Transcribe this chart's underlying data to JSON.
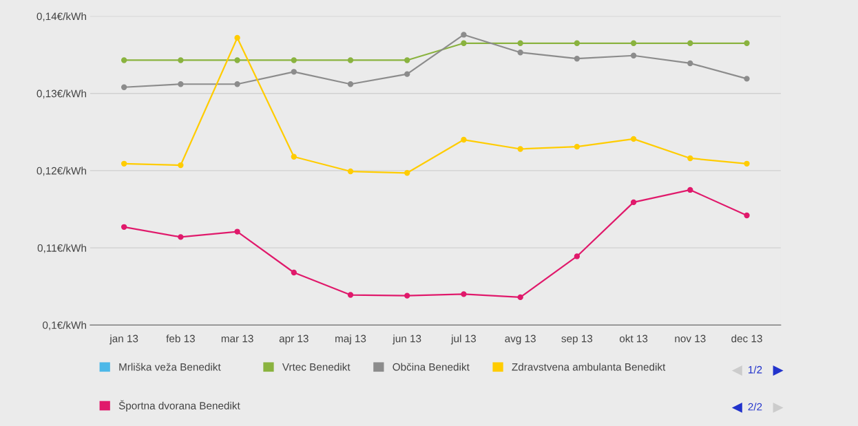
{
  "chart_data": {
    "type": "line",
    "categories": [
      "jan 13",
      "feb 13",
      "mar 13",
      "apr 13",
      "maj 13",
      "jun 13",
      "jul 13",
      "avg 13",
      "sep 13",
      "okt 13",
      "nov 13",
      "dec 13"
    ],
    "series": [
      {
        "name": "Mrliška veža Benedikt",
        "color": "#4db8e8",
        "values": [
          null,
          null,
          null,
          null,
          null,
          null,
          null,
          null,
          null,
          null,
          null,
          null
        ]
      },
      {
        "name": "Vrtec Benedikt",
        "color": "#8ab33f",
        "values": [
          0.1343,
          0.1343,
          0.1343,
          0.1343,
          0.1343,
          0.1343,
          0.1365,
          0.1365,
          0.1365,
          0.1365,
          0.1365,
          0.1365
        ]
      },
      {
        "name": "Občina Benedikt",
        "color": "#8c8c8c",
        "values": [
          0.1308,
          0.1312,
          0.1312,
          0.1328,
          0.1312,
          0.1325,
          0.1376,
          0.1353,
          0.1345,
          0.1349,
          0.1339,
          0.1319
        ]
      },
      {
        "name": "Zdravstvena ambulanta Benedikt",
        "color": "#ffcc00",
        "values": [
          0.1209,
          0.1207,
          0.1372,
          0.1218,
          0.1199,
          0.1197,
          0.124,
          0.1228,
          0.1231,
          0.1241,
          0.1216,
          0.1209
        ]
      },
      {
        "name": "Športna dvorana Benedikt",
        "color": "#e0196b",
        "values": [
          0.1127,
          0.1114,
          0.1121,
          0.1068,
          0.1039,
          0.1038,
          0.104,
          0.1036,
          0.1089,
          0.1159,
          0.1175,
          0.1142
        ]
      }
    ],
    "ylim": [
      0.1,
      0.14
    ],
    "yticks": [
      {
        "value": 0.1,
        "label": "0,1€/kWh"
      },
      {
        "value": 0.11,
        "label": "0,11€/kWh"
      },
      {
        "value": 0.12,
        "label": "0,12€/kWh"
      },
      {
        "value": 0.13,
        "label": "0,13€/kWh"
      },
      {
        "value": 0.14,
        "label": "0,14€/kWh"
      }
    ],
    "grid": "y",
    "legend": "bottom",
    "marker": "circle",
    "line_style": "solid",
    "annotations": [
      "1/2",
      "2/2"
    ]
  }
}
